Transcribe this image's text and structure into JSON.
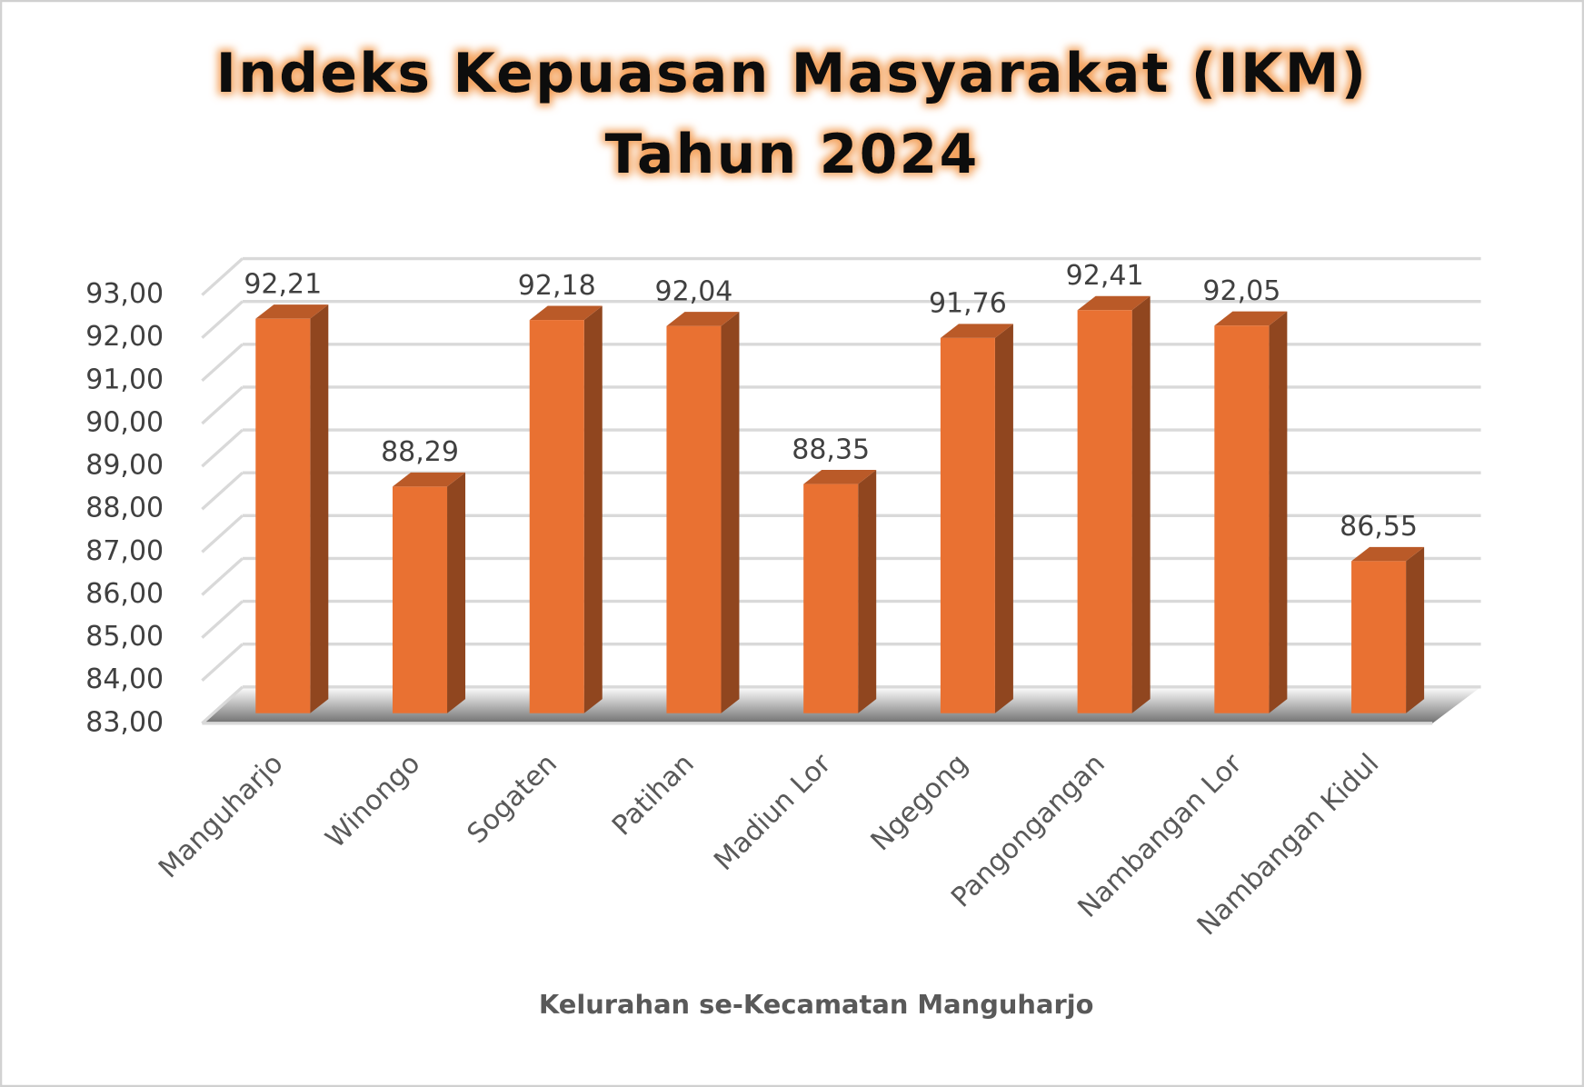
{
  "chart_data": {
    "type": "bar3d",
    "title": [
      "Indeks Kepuasan Masyarakat (IKM)",
      "Tahun 2024"
    ],
    "x_label": "Kelurahan se-Kecamatan Manguharjo",
    "categories": [
      "Manguharjo",
      "Winongo",
      "Sogaten",
      "Patihan",
      "Madiun Lor",
      "Ngegong",
      "Pangongangan",
      "Nambangan Lor",
      "Nambangan Kidul"
    ],
    "values": [
      92.21,
      88.29,
      92.18,
      92.04,
      88.35,
      91.76,
      92.41,
      92.05,
      86.55
    ],
    "value_labels": [
      "92,21",
      "88,29",
      "92,18",
      "92,04",
      "88,35",
      "91,76",
      "92,41",
      "92,05",
      "86,55"
    ],
    "color": "#e97132",
    "ylim": [
      83,
      93
    ],
    "yticks": [
      {
        "value": 83,
        "label": "83,00"
      },
      {
        "value": 84,
        "label": "84,00"
      },
      {
        "value": 85,
        "label": "85,00"
      },
      {
        "value": 86,
        "label": "86,00"
      },
      {
        "value": 87,
        "label": "87,00"
      },
      {
        "value": 88,
        "label": "88,00"
      },
      {
        "value": 89,
        "label": "89,00"
      },
      {
        "value": 90,
        "label": "90,00"
      },
      {
        "value": 91,
        "label": "91,00"
      },
      {
        "value": 92,
        "label": "92,00"
      },
      {
        "value": 93,
        "label": "93,00"
      }
    ],
    "grid": true
  }
}
